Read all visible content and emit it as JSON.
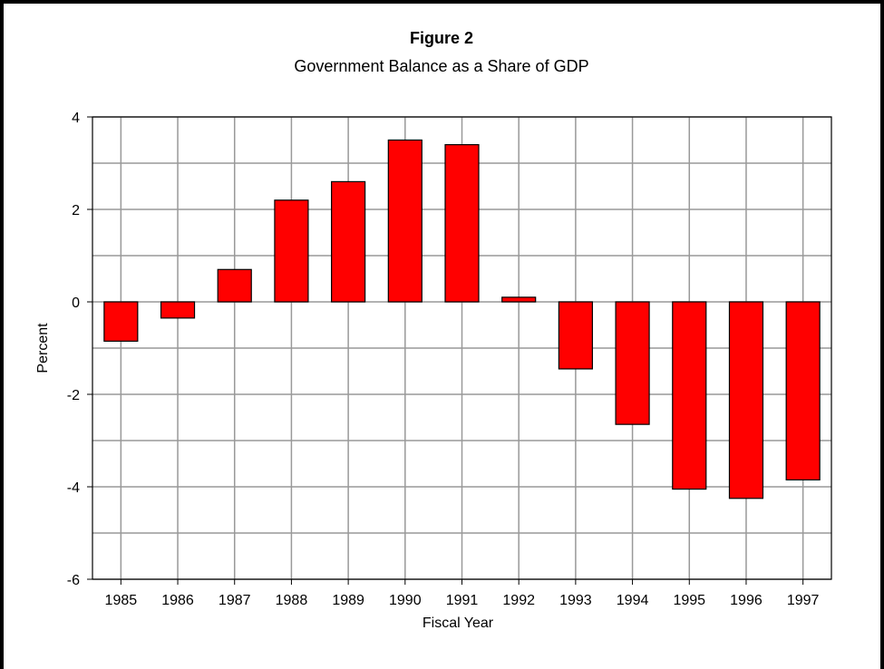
{
  "chart_data": {
    "type": "bar",
    "title": "Figure 2",
    "subtitle": "Government Balance as a Share of GDP",
    "xlabel": "Fiscal Year",
    "ylabel": "Percent",
    "categories": [
      "1985",
      "1986",
      "1987",
      "1988",
      "1989",
      "1990",
      "1991",
      "1992",
      "1993",
      "1994",
      "1995",
      "1996",
      "1997"
    ],
    "values": [
      -0.85,
      -0.35,
      0.7,
      2.2,
      2.6,
      3.5,
      3.4,
      0.1,
      -1.45,
      -2.65,
      -4.05,
      -4.25,
      -3.85
    ],
    "ylim": [
      -6,
      4
    ],
    "yticks": [
      "4",
      "2",
      "0",
      "-2",
      "-4",
      "-6"
    ],
    "grid": true,
    "bar_color": "#ff0000"
  }
}
